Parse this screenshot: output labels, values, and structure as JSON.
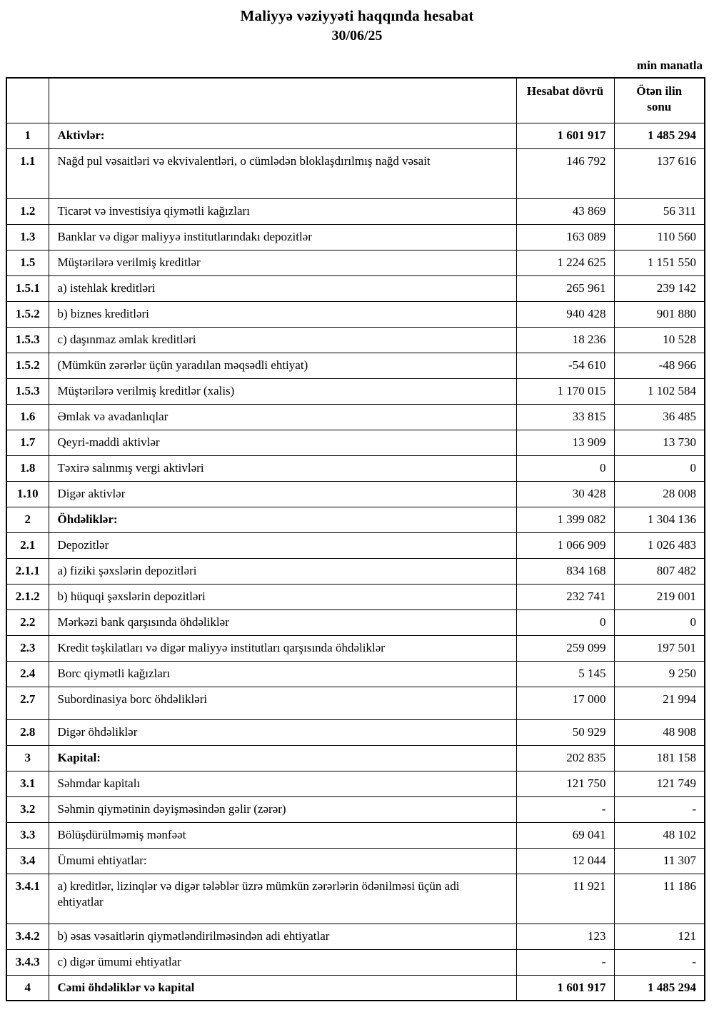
{
  "page": {
    "background_color": "#ffffff",
    "text_color": "#000000",
    "border_color": "#000000"
  },
  "header": {
    "title": "Maliyyə vəziyyəti haqqında hesabat",
    "date": "30/06/25",
    "unit_note": "min manatla"
  },
  "table": {
    "column_headers": {
      "number": "",
      "label": "",
      "current": "Hesabat dövrü",
      "previous": "Ötən ilin sonu"
    },
    "rows": [
      {
        "no": "1",
        "label": "Aktivlər:",
        "current": "1 601 917",
        "previous": "1 485 294",
        "bold": "all"
      },
      {
        "no": "1.1",
        "label": "Nağd pul vəsaitləri və  ekvivalentləri, o cümlədən bloklaşdırılmış nağd vəsait",
        "current": "146 792",
        "previous": "137 616",
        "bold": "none"
      },
      {
        "no": "1.2",
        "label": "Ticarət və investisiya qiymətli kağızları",
        "current": "43 869",
        "previous": "56 311",
        "bold": "none"
      },
      {
        "no": "1.3",
        "label": "Banklar və digər maliyyə institutlarındakı depozitlər",
        "current": "163 089",
        "previous": "110 560",
        "bold": "none"
      },
      {
        "no": "1.5",
        "label": "Müştərilərə verilmiş kreditlər",
        "current": "1 224 625",
        "previous": "1 151 550",
        "bold": "none"
      },
      {
        "no": "1.5.1",
        "label": "a) istehlak kreditləri",
        "current": "265 961",
        "previous": "239 142",
        "bold": "none"
      },
      {
        "no": "1.5.2",
        "label": "b) biznes kreditləri",
        "current": "940 428",
        "previous": "901 880",
        "bold": "none"
      },
      {
        "no": "1.5.3",
        "label": "c) daşınmaz əmlak kreditləri",
        "current": "18 236",
        "previous": "10 528",
        "bold": "none"
      },
      {
        "no": "1.5.2",
        "label": "(Mümkün zərərlər üçün yaradılan məqsədli ehtiyat)",
        "current": "-54 610",
        "previous": "-48 966",
        "bold": "none"
      },
      {
        "no": "1.5.3",
        "label": "Müştərilərə verilmiş kreditlər (xalis)",
        "current": "1 170 015",
        "previous": "1 102 584",
        "bold": "none"
      },
      {
        "no": "1.6",
        "label": "Əmlak və avadanlıqlar",
        "current": "33 815",
        "previous": "36 485",
        "bold": "none"
      },
      {
        "no": "1.7",
        "label": "Qeyri-maddi aktivlər",
        "current": "13 909",
        "previous": "13 730",
        "bold": "none"
      },
      {
        "no": "1.8",
        "label": "Təxirə salınmış vergi aktivləri",
        "current": "0",
        "previous": "0",
        "bold": "none"
      },
      {
        "no": "1.10",
        "label": "Digər aktivlər",
        "current": "30 428",
        "previous": "28 008",
        "bold": "none"
      },
      {
        "no": "2",
        "label": "Öhdəliklər:",
        "current": "1 399 082",
        "previous": "1 304 136",
        "bold": "label"
      },
      {
        "no": "2.1",
        "label": "Depozitlər",
        "current": "1 066 909",
        "previous": "1 026 483",
        "bold": "none"
      },
      {
        "no": "2.1.1",
        "label": "a) fiziki şəxslərin depozitləri",
        "current": "834 168",
        "previous": "807 482",
        "bold": "none"
      },
      {
        "no": "2.1.2",
        "label": "b) hüquqi şəxslərin depozitləri",
        "current": "232 741",
        "previous": "219 001",
        "bold": "none"
      },
      {
        "no": "2.2",
        "label": "Mərkəzi bank qarşısında öhdəliklər",
        "current": "0",
        "previous": "0",
        "bold": "none"
      },
      {
        "no": "2.3",
        "label": "Kredit təşkilatları və digər maliyyə institutları qarşısında öhdəliklər",
        "current": "259 099",
        "previous": "197 501",
        "bold": "none"
      },
      {
        "no": "2.4",
        "label": "Borc qiymətli kağızları",
        "current": "5 145",
        "previous": "9 250",
        "bold": "none"
      },
      {
        "no": "2.7",
        "label": "Subordinasiya borc öhdəlikləri",
        "current": "17 000",
        "previous": "21 994",
        "bold": "none"
      },
      {
        "no": "2.8",
        "label": "Digər öhdəliklər",
        "current": "50 929",
        "previous": "48 908",
        "bold": "none"
      },
      {
        "no": "3",
        "label": "Kapital:",
        "current": "202 835",
        "previous": "181 158",
        "bold": "label"
      },
      {
        "no": "3.1",
        "label": "Səhmdar kapitalı",
        "current": "121 750",
        "previous": "121 749",
        "bold": "none"
      },
      {
        "no": "3.2",
        "label": "Səhmin qiymətinin dəyişməsindən gəlir (zərər)",
        "current": "-",
        "previous": "-",
        "bold": "none"
      },
      {
        "no": "3.3",
        "label": "Bölüşdürülməmiş mənfəət",
        "current": "69 041",
        "previous": "48 102",
        "bold": "none"
      },
      {
        "no": "3.4",
        "label": "Ümumi ehtiyatlar:",
        "current": "12 044",
        "previous": "11 307",
        "bold": "none"
      },
      {
        "no": "3.4.1",
        "label": "a) kreditlər, lizinqlər və digər tələblər üzrə mümkün zərərlərin ödənilməsi üçün adi ehtiyatlar",
        "current": "11 921",
        "previous": "11 186",
        "bold": "none"
      },
      {
        "no": "3.4.2",
        "label": "b) əsas vəsaitlərin qiymətləndirilməsindən adi ehtiyatlar",
        "current": "123",
        "previous": "121",
        "bold": "none"
      },
      {
        "no": "3.4.3",
        "label": "c) digər ümumi ehtiyatlar",
        "current": "-",
        "previous": "-",
        "bold": "none"
      },
      {
        "no": "4",
        "label": "Cəmi öhdəliklər və kapital",
        "current": "1 601 917",
        "previous": "1 485 294",
        "bold": "all"
      }
    ]
  }
}
